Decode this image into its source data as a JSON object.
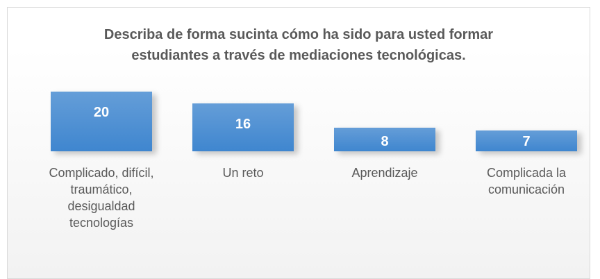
{
  "chart_data": {
    "type": "bar",
    "title": "Describa de forma sucinta cómo ha sido para usted formar estudiantes a través de mediaciones tecnológicas.",
    "categories": [
      "Complicado, difícil, traumático, desigualdad tecnologías",
      "Un reto",
      "Aprendizaje",
      "Complicada la comunicación"
    ],
    "values": [
      20,
      16,
      8,
      7
    ],
    "color": "#3f86cf"
  }
}
